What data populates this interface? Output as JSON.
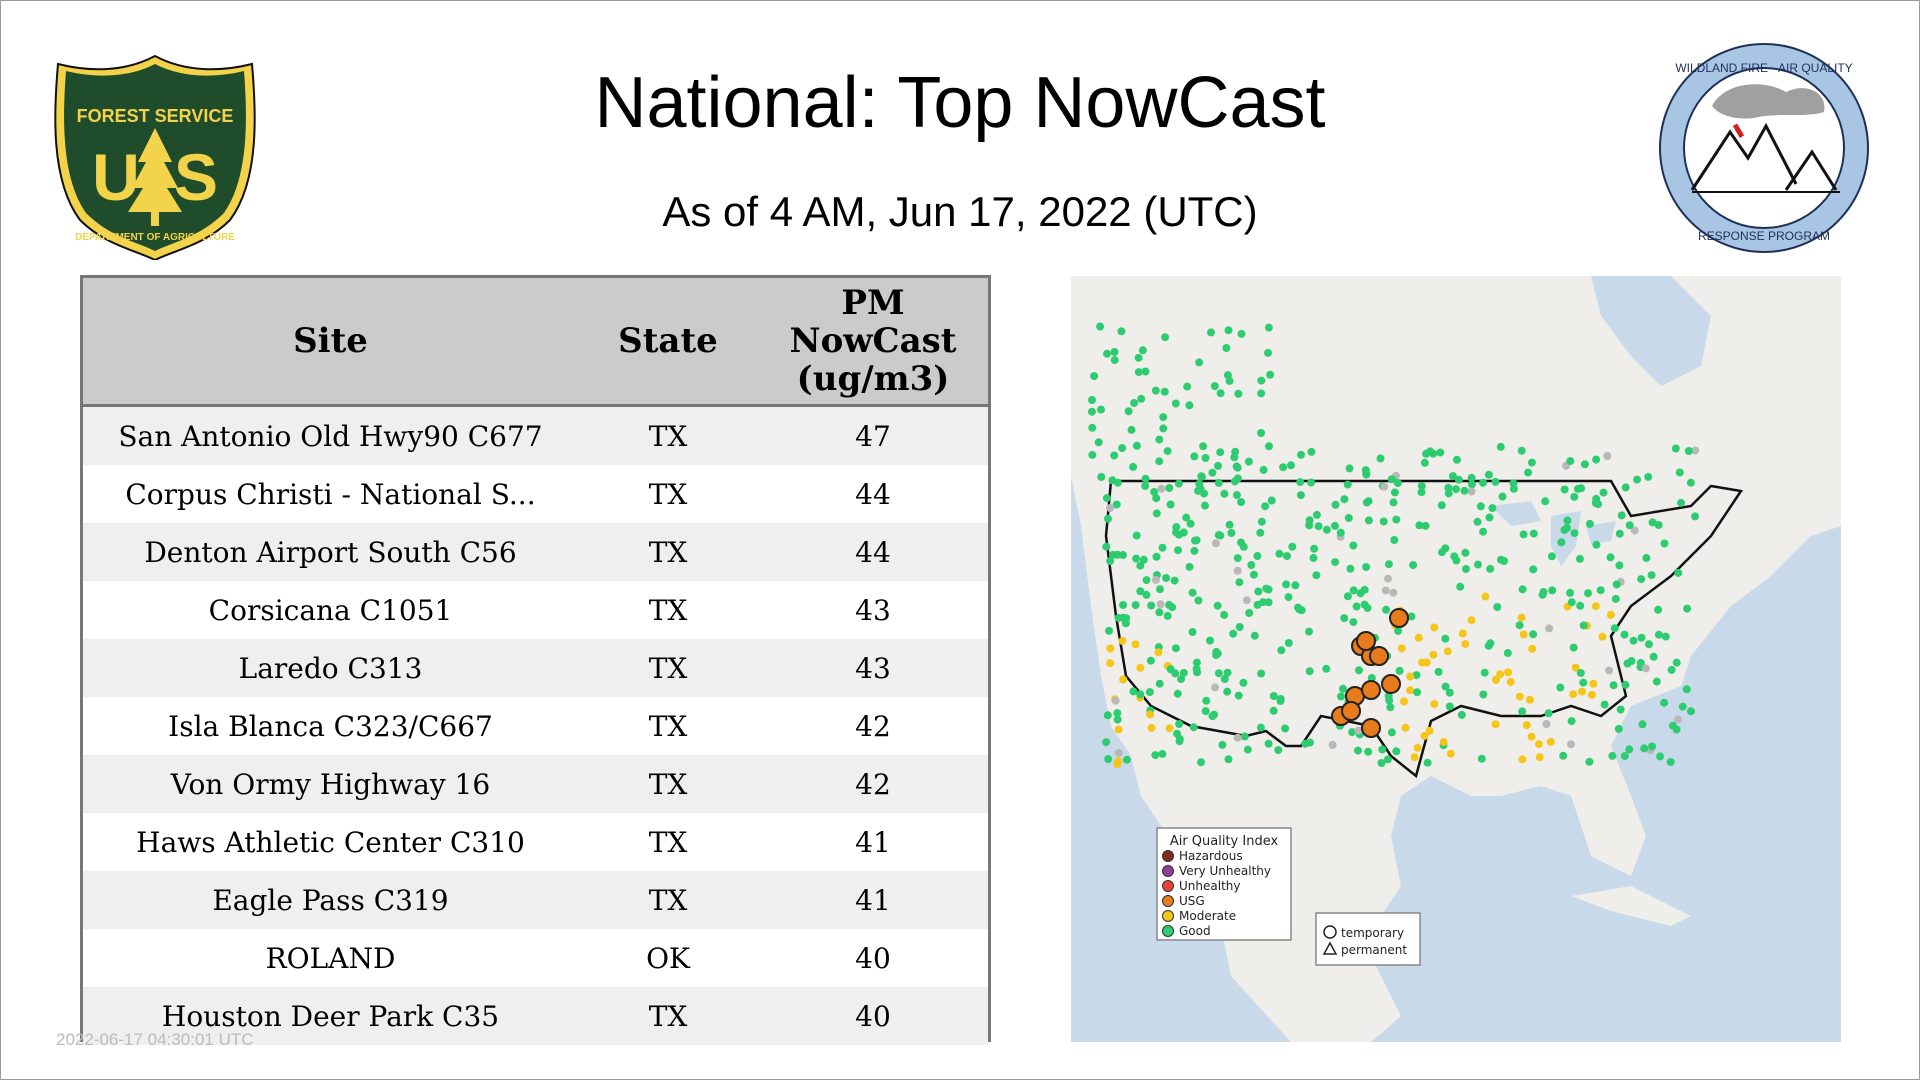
{
  "header": {
    "title": "National: Top NowCast",
    "subtitle": "As of  4 AM, Jun 17, 2022 (UTC)"
  },
  "logos": {
    "usfs": {
      "line1": "FOREST SERVICE",
      "letters": "U S",
      "line2": "DEPARTMENT OF AGRICULTURE"
    },
    "wfaq": {
      "top": "WILDLAND FIRE · AIR QUALITY",
      "bottom": "RESPONSE PROGRAM"
    }
  },
  "table": {
    "headers": {
      "site": "Site",
      "state": "State",
      "pm_line1": "PM",
      "pm_line2": "NowCast",
      "pm_line3": "(ug/m3)"
    },
    "rows": [
      {
        "site": "San Antonio Old Hwy90 C677",
        "state": "TX",
        "pm": "47"
      },
      {
        "site": "Corpus Christi - National S...",
        "state": "TX",
        "pm": "44"
      },
      {
        "site": "Denton Airport South C56",
        "state": "TX",
        "pm": "44"
      },
      {
        "site": "Corsicana C1051",
        "state": "TX",
        "pm": "43"
      },
      {
        "site": "Laredo C313",
        "state": "TX",
        "pm": "43"
      },
      {
        "site": "Isla Blanca C323/C667",
        "state": "TX",
        "pm": "42"
      },
      {
        "site": "Von Ormy Highway 16",
        "state": "TX",
        "pm": "42"
      },
      {
        "site": "Haws Athletic Center C310",
        "state": "TX",
        "pm": "41"
      },
      {
        "site": "Eagle Pass C319",
        "state": "TX",
        "pm": "41"
      },
      {
        "site": "ROLAND",
        "state": "OK",
        "pm": "40"
      },
      {
        "site": "Houston Deer Park C35",
        "state": "TX",
        "pm": "40"
      }
    ]
  },
  "map": {
    "legend": {
      "title": "Air Quality Index",
      "items": [
        {
          "label": "Hazardous",
          "color": "#7e2a1f"
        },
        {
          "label": "Very Unhealthy",
          "color": "#8f3f97"
        },
        {
          "label": "Unhealthy",
          "color": "#e8413b"
        },
        {
          "label": "USG",
          "color": "#e87b1c"
        },
        {
          "label": "Moderate",
          "color": "#f5c518"
        },
        {
          "label": "Good",
          "color": "#2ecc71"
        }
      ]
    },
    "shape_legend": {
      "circle": "temporary",
      "triangle": "permanent"
    }
  },
  "footer": {
    "timestamp": "2022-06-17 04:30:01 UTC"
  }
}
